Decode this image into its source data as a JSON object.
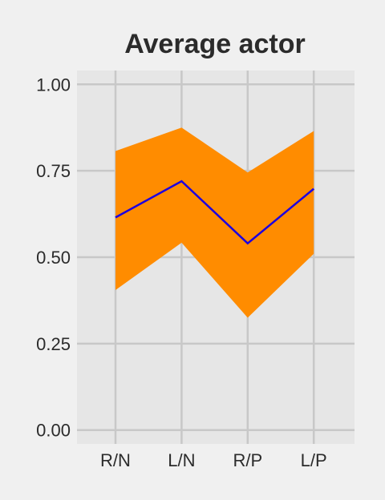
{
  "chart_data": {
    "type": "line",
    "title": "Average actor",
    "xlabel": "",
    "ylabel": "",
    "categories": [
      "R/N",
      "L/N",
      "R/P",
      "L/P"
    ],
    "series": [
      {
        "values": [
          0.615,
          0.72,
          0.54,
          0.698
        ],
        "lower": [
          0.405,
          0.542,
          0.325,
          0.51
        ],
        "upper": [
          0.807,
          0.875,
          0.745,
          0.865
        ]
      }
    ],
    "ylim": [
      -0.04,
      1.04
    ],
    "yticks": [
      0.0,
      0.25,
      0.5,
      0.75,
      1.0
    ],
    "ytick_labels": [
      "0.00",
      "0.25",
      "0.50",
      "0.75",
      "1.00"
    ],
    "grid": true,
    "colors": {
      "page_background": "#f0f0f0",
      "panel_background": "#e6e6e6",
      "gridline": "#c8c8c8",
      "band_fill": "#ff8c00",
      "line": "#1d00e0",
      "text": "#2b2b2b"
    }
  }
}
